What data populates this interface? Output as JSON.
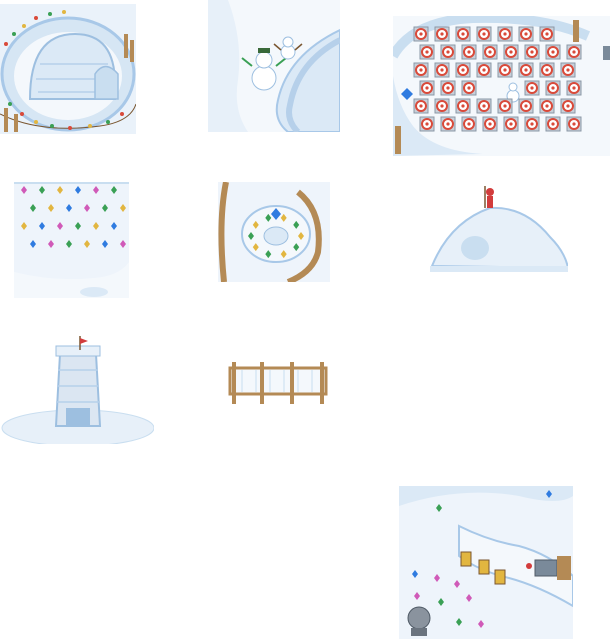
{
  "sheet": {
    "background": "#ffffff",
    "tiles": [
      {
        "id": "igloo-with-lights",
        "icon": "igloo-icon"
      },
      {
        "id": "snowmen-on-slope",
        "icon": "snowman-icon"
      },
      {
        "id": "target-field",
        "icon": "target-icon"
      },
      {
        "id": "gem-field",
        "icon": "gem-icon"
      },
      {
        "id": "gem-ring-fort",
        "icon": "gem-icon"
      },
      {
        "id": "snow-hill-with-flag",
        "icon": "flag-icon"
      },
      {
        "id": "snow-tower",
        "icon": "tower-icon"
      },
      {
        "id": "wooden-sign-board",
        "icon": "sign-icon"
      },
      {
        "id": "slope-with-gate",
        "icon": "gate-icon"
      }
    ]
  },
  "colors": {
    "snow": "#f4f8fc",
    "snow_shadow": "#c9def0",
    "ice_blue": "#a8c8e8",
    "wood": "#b48a55",
    "wood_dark": "#7a5630",
    "target_red": "#d94a3a",
    "target_box": "#c8d0da",
    "gem_blue": "#2f7be0",
    "gem_green": "#3aa055",
    "gem_pink": "#d05ab8",
    "gem_yellow": "#e2b640",
    "flag_red": "#d23c3c",
    "tower_stone": "#dbe6f2"
  }
}
